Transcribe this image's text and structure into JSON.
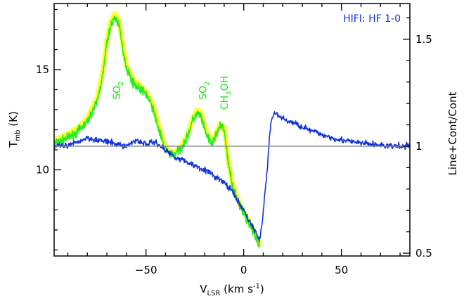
{
  "chart_data": {
    "type": "line",
    "title": "",
    "instrument_label": "HIFI: HF 1-0",
    "xlabel": {
      "main": "V",
      "sub": "LSR",
      "unit": " (km s",
      "sup": "-1",
      "close": ")"
    },
    "ylabel_left": {
      "main": "T",
      "sub": "mb",
      "unit": " (K)"
    },
    "ylabel_right": "Line+Cont/Cont",
    "xlim": [
      -97,
      85
    ],
    "ylim_left": [
      5.7,
      18.3
    ],
    "ylim_right": [
      0.487,
      1.667
    ],
    "x_ticks": [
      -50,
      0,
      50
    ],
    "x_tick_labels": [
      "−50",
      "0",
      "50"
    ],
    "y_left_ticks": [
      10,
      15
    ],
    "y_left_tick_labels": [
      "10",
      "15"
    ],
    "y_right_ticks": [
      0.5,
      1,
      1.5
    ],
    "y_right_tick_labels": [
      "0.5",
      "1",
      "1.5"
    ],
    "reference_line": {
      "axis": "right",
      "value": 1.0,
      "color": "#888888"
    },
    "annotations": [
      {
        "parts": [
          {
            "t": "SO"
          },
          {
            "t": "2",
            "sub": true
          }
        ],
        "x": -65,
        "y_left": 13.5,
        "color": "#22dd22"
      },
      {
        "parts": [
          {
            "t": "SO"
          },
          {
            "t": "2",
            "sub": true
          }
        ],
        "x": -21,
        "y_left": 13.5,
        "color": "#22dd22"
      },
      {
        "parts": [
          {
            "t": "CH"
          },
          {
            "t": "3",
            "sub": true
          },
          {
            "t": "OH"
          }
        ],
        "x": -10,
        "y_left": 13.0,
        "color": "#22dd22"
      }
    ],
    "series": [
      {
        "role": "model",
        "axis": "left",
        "color": "#ffff33",
        "width": 7,
        "x": [
          -97,
          -90,
          -85,
          -80,
          -75,
          -72,
          -70,
          -68,
          -66,
          -64,
          -62,
          -60,
          -57,
          -54,
          -50,
          -47,
          -44,
          -41,
          -38,
          -35,
          -32,
          -29,
          -26,
          -24,
          -22,
          -20,
          -18,
          -16,
          -14,
          -12,
          -10,
          -8,
          -6,
          -4,
          -2,
          0,
          3,
          6,
          8
        ],
        "y": [
          11.5,
          11.8,
          12.1,
          12.6,
          13.6,
          15.0,
          16.5,
          17.4,
          17.8,
          17.5,
          16.3,
          15.2,
          14.6,
          14.3,
          13.9,
          13.4,
          12.4,
          11.4,
          10.9,
          10.9,
          11.2,
          11.7,
          12.6,
          13.0,
          12.9,
          12.2,
          11.7,
          11.4,
          11.9,
          12.3,
          12.1,
          10.5,
          9.4,
          8.8,
          8.3,
          7.9,
          7.4,
          6.8,
          6.3
        ]
      },
      {
        "role": "data",
        "axis": "left",
        "color": "#22ee22",
        "width": 1.6,
        "noise": 0.22,
        "x": [
          -97,
          -90,
          -85,
          -80,
          -75,
          -72,
          -70,
          -68,
          -66,
          -64,
          -62,
          -60,
          -57,
          -54,
          -50,
          -47,
          -44,
          -41,
          -38,
          -35,
          -32,
          -29,
          -26,
          -24,
          -22,
          -20,
          -18,
          -16,
          -14,
          -12,
          -10,
          -8,
          -6,
          -4,
          -2,
          0,
          3,
          6,
          8
        ],
        "y": [
          11.3,
          11.6,
          11.9,
          12.4,
          13.4,
          14.8,
          16.4,
          17.2,
          17.6,
          17.3,
          16.1,
          15.1,
          14.4,
          14.1,
          13.8,
          13.2,
          12.2,
          11.2,
          10.8,
          10.8,
          11.1,
          11.6,
          12.5,
          12.8,
          12.7,
          12.0,
          11.5,
          11.3,
          11.8,
          12.2,
          12.0,
          10.4,
          9.3,
          8.7,
          8.2,
          7.8,
          7.3,
          6.7,
          6.2
        ]
      },
      {
        "role": "HF 1-0",
        "axis": "right",
        "color": "#1133dd",
        "width": 1.6,
        "noise": 0.014,
        "x": [
          -97,
          -90,
          -85,
          -80,
          -75,
          -70,
          -65,
          -60,
          -55,
          -50,
          -45,
          -40,
          -35,
          -30,
          -25,
          -20,
          -15,
          -10,
          -6,
          -3,
          0,
          3,
          6,
          8,
          9,
          10,
          12,
          13,
          14,
          16,
          18,
          22,
          28,
          35,
          45,
          55,
          65,
          75,
          85
        ],
        "y": [
          1.0,
          1.0,
          1.02,
          1.04,
          1.03,
          1.02,
          1.01,
          1.0,
          1.03,
          1.01,
          1.02,
          0.98,
          0.95,
          0.93,
          0.91,
          0.89,
          0.86,
          0.83,
          0.79,
          0.74,
          0.7,
          0.65,
          0.6,
          0.56,
          0.61,
          0.7,
          0.88,
          1.03,
          1.12,
          1.16,
          1.14,
          1.12,
          1.1,
          1.07,
          1.04,
          1.02,
          1.01,
          1.0,
          1.0
        ]
      }
    ]
  }
}
